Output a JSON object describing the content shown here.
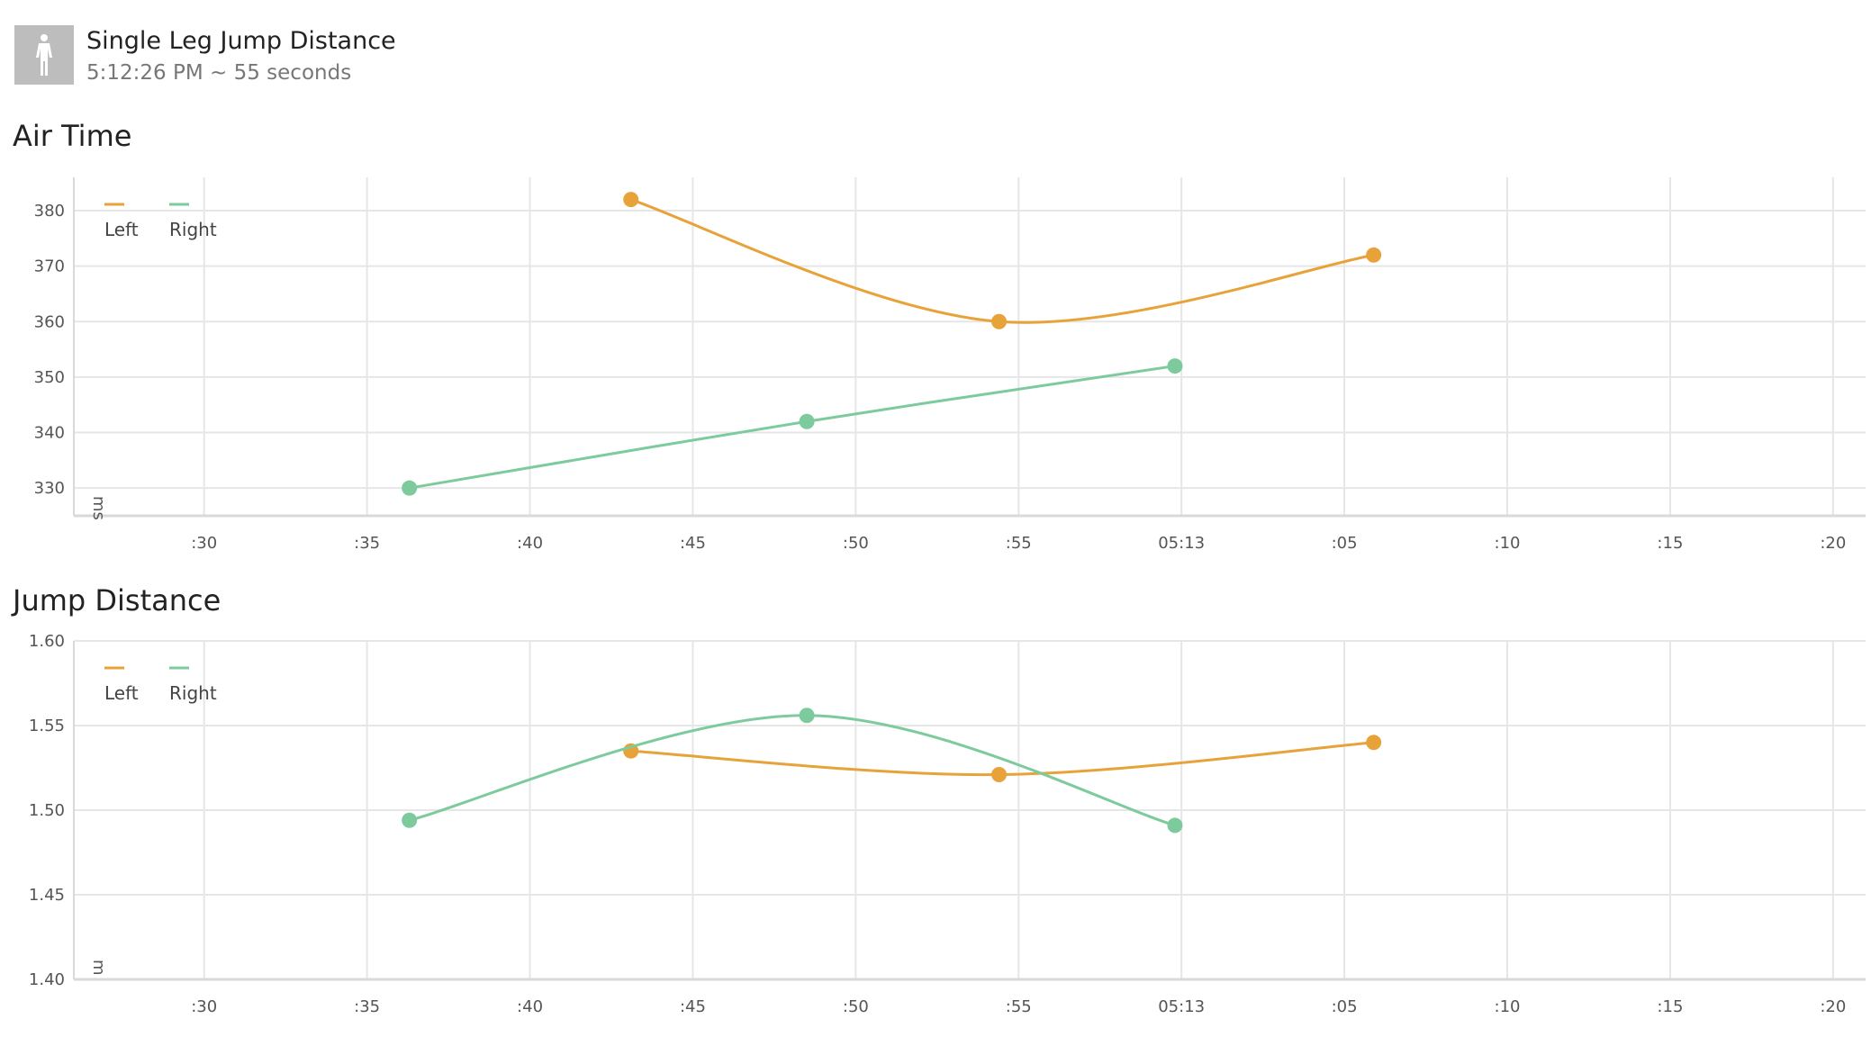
{
  "header": {
    "title": "Single Leg Jump Distance",
    "subtitle": "5:12:26 PM ~ 55 seconds",
    "avatar_icon": "person-silhouette-icon"
  },
  "colors": {
    "left": "#E8A23A",
    "right": "#7DCB9C",
    "grid": "#e6e6e6",
    "axis": "#d9d9d9",
    "tick": "#555555"
  },
  "chart_data": [
    {
      "type": "line",
      "title": "Air Time",
      "ylabel": "ms",
      "ylim": [
        325,
        386
      ],
      "yticks": [
        330,
        340,
        350,
        360,
        370,
        380
      ],
      "xlim": [
        "5:12:26",
        "5:13:21"
      ],
      "xticks": [
        {
          "t": "5:12:30",
          "label": ":30"
        },
        {
          "t": "5:12:35",
          "label": ":35"
        },
        {
          "t": "5:12:40",
          "label": ":40"
        },
        {
          "t": "5:12:45",
          "label": ":45"
        },
        {
          "t": "5:12:50",
          "label": ":50"
        },
        {
          "t": "5:12:55",
          "label": ":55"
        },
        {
          "t": "5:13:00",
          "label": "05:13"
        },
        {
          "t": "5:13:05",
          "label": ":05"
        },
        {
          "t": "5:13:10",
          "label": ":10"
        },
        {
          "t": "5:13:15",
          "label": ":15"
        },
        {
          "t": "5:13:20",
          "label": ":20"
        }
      ],
      "legend": "top-left",
      "grid": true,
      "series": [
        {
          "name": "Left",
          "color": "#E8A23A",
          "points": [
            {
              "t": "5:12:43.1",
              "y": 382
            },
            {
              "t": "5:12:54.4",
              "y": 360
            },
            {
              "t": "5:13:05.9",
              "y": 372
            }
          ]
        },
        {
          "name": "Right",
          "color": "#7DCB9C",
          "points": [
            {
              "t": "5:12:36.3",
              "y": 330
            },
            {
              "t": "5:12:48.5",
              "y": 342
            },
            {
              "t": "5:12:59.8",
              "y": 352
            }
          ]
        }
      ]
    },
    {
      "type": "line",
      "title": "Jump Distance",
      "ylabel": "m",
      "ylim": [
        1.4,
        1.6
      ],
      "yticks": [
        "1.40",
        "1.45",
        "1.50",
        "1.55",
        "1.60"
      ],
      "xlim": [
        "5:12:26",
        "5:13:21"
      ],
      "xticks": [
        {
          "t": "5:12:30",
          "label": ":30"
        },
        {
          "t": "5:12:35",
          "label": ":35"
        },
        {
          "t": "5:12:40",
          "label": ":40"
        },
        {
          "t": "5:12:45",
          "label": ":45"
        },
        {
          "t": "5:12:50",
          "label": ":50"
        },
        {
          "t": "5:12:55",
          "label": ":55"
        },
        {
          "t": "5:13:00",
          "label": "05:13"
        },
        {
          "t": "5:13:05",
          "label": ":05"
        },
        {
          "t": "5:13:10",
          "label": ":10"
        },
        {
          "t": "5:13:15",
          "label": ":15"
        },
        {
          "t": "5:13:20",
          "label": ":20"
        }
      ],
      "legend": "top-left",
      "grid": true,
      "series": [
        {
          "name": "Left",
          "color": "#E8A23A",
          "points": [
            {
              "t": "5:12:43.1",
              "y": 1.535
            },
            {
              "t": "5:12:54.4",
              "y": 1.521
            },
            {
              "t": "5:13:05.9",
              "y": 1.54
            }
          ]
        },
        {
          "name": "Right",
          "color": "#7DCB9C",
          "points": [
            {
              "t": "5:12:36.3",
              "y": 1.494
            },
            {
              "t": "5:12:48.5",
              "y": 1.556
            },
            {
              "t": "5:12:59.8",
              "y": 1.491
            }
          ]
        }
      ]
    }
  ]
}
